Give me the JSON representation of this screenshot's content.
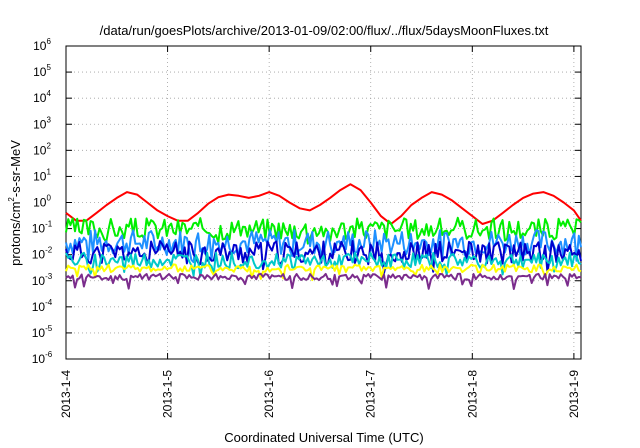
{
  "chart_data": {
    "type": "line",
    "title": "/data/run/goesPlots/archive/2013-01-09/02:00/flux/../flux/5daysMoonFluxes.txt",
    "xlabel": "Coordinated Universal Time (UTC)",
    "ylabel": "protons/cm2-s-sr-MeV",
    "ylabel_parts": {
      "base": "protons/cm",
      "sup": "2",
      "rest": "-s-sr-MeV"
    },
    "yscale": "log",
    "ylim": [
      1e-06,
      1000000.0
    ],
    "xlim_days": [
      0,
      5.07
    ],
    "grid": true,
    "legend": "none",
    "x_tick_labels": [
      "2013-1-4",
      "2013-1-5",
      "2013-1-6",
      "2013-1-7",
      "2013-1-8",
      "2013-1-9"
    ],
    "y_tick_labels": [
      {
        "base": "10",
        "exp": "-6"
      },
      {
        "base": "10",
        "exp": "-5"
      },
      {
        "base": "10",
        "exp": "-4"
      },
      {
        "base": "10",
        "exp": "-3"
      },
      {
        "base": "10",
        "exp": "-2"
      },
      {
        "base": "10",
        "exp": "-1"
      },
      {
        "base": "10",
        "exp": "0"
      },
      {
        "base": "10",
        "exp": "1"
      },
      {
        "base": "10",
        "exp": "2"
      },
      {
        "base": "10",
        "exp": "3"
      },
      {
        "base": "10",
        "exp": "4"
      },
      {
        "base": "10",
        "exp": "5"
      },
      {
        "base": "10",
        "exp": "6"
      }
    ],
    "series": [
      {
        "color": "#ff0000",
        "x": [
          0,
          0.1,
          0.2,
          0.3,
          0.4,
          0.5,
          0.6,
          0.7,
          0.8,
          0.9,
          1.0,
          1.1,
          1.2,
          1.3,
          1.4,
          1.5,
          1.6,
          1.7,
          1.8,
          1.9,
          2.0,
          2.1,
          2.2,
          2.3,
          2.4,
          2.5,
          2.6,
          2.7,
          2.8,
          2.9,
          3.0,
          3.1,
          3.2,
          3.3,
          3.4,
          3.5,
          3.6,
          3.7,
          3.8,
          3.9,
          4.0,
          4.1,
          4.2,
          4.3,
          4.4,
          4.5,
          4.6,
          4.7,
          4.8,
          4.9,
          5.0,
          5.07
        ],
        "values": [
          0.4,
          0.2,
          0.2,
          0.4,
          0.8,
          1.5,
          2.5,
          2,
          1,
          0.5,
          0.3,
          0.2,
          0.2,
          0.4,
          0.9,
          1.6,
          2,
          1.8,
          1.5,
          1.8,
          2.5,
          1.8,
          1,
          0.6,
          0.5,
          0.8,
          1.5,
          3,
          5,
          3,
          1,
          0.3,
          0.15,
          0.3,
          0.8,
          1.5,
          2.5,
          2,
          1.2,
          0.6,
          0.3,
          0.15,
          0.2,
          0.4,
          0.8,
          1.5,
          2.2,
          2.5,
          1.8,
          1.0,
          0.5,
          0.2
        ]
      },
      {
        "color": "#00ee00",
        "base": 0.1,
        "amp": 0.42,
        "seed": 3
      },
      {
        "color": "#1e90ff",
        "base": 0.03,
        "amp": 0.5,
        "seed": 7
      },
      {
        "color": "#0000cd",
        "base": 0.012,
        "amp": 0.45,
        "seed": 11
      },
      {
        "color": "#00c8c8",
        "base": 0.006,
        "amp": 0.3,
        "seed": 19
      },
      {
        "color": "#ffff00",
        "base": 0.003,
        "amp": 0.15,
        "seed": 23
      },
      {
        "color": "#7b2c8c",
        "base": 0.0014,
        "amp": 0.12,
        "seed": 29
      }
    ]
  }
}
